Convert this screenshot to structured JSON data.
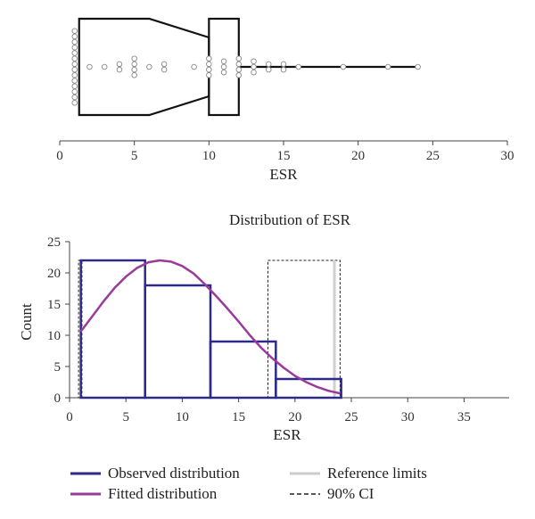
{
  "chart_data": [
    {
      "type": "box",
      "xlabel": "ESR",
      "xlim": [
        0,
        30
      ],
      "xticks": [
        0,
        5,
        10,
        15,
        20,
        25,
        30
      ],
      "box": {
        "q1": 1.3,
        "median": 10,
        "q3": 12,
        "notch_low": 6,
        "notch_high": 10,
        "whisker_high": 24
      },
      "points": [
        {
          "x": 1,
          "n": 14
        },
        {
          "x": 2,
          "n": 1
        },
        {
          "x": 3,
          "n": 1
        },
        {
          "x": 4,
          "n": 2
        },
        {
          "x": 5,
          "n": 4
        },
        {
          "x": 6,
          "n": 1
        },
        {
          "x": 7,
          "n": 2
        },
        {
          "x": 9,
          "n": 1
        },
        {
          "x": 10,
          "n": 4
        },
        {
          "x": 11,
          "n": 3
        },
        {
          "x": 12,
          "n": 4
        },
        {
          "x": 13,
          "n": 3
        },
        {
          "x": 14,
          "n": 2
        },
        {
          "x": 15,
          "n": 2
        },
        {
          "x": 16,
          "n": 1
        },
        {
          "x": 19,
          "n": 1
        },
        {
          "x": 22,
          "n": 1
        },
        {
          "x": 24,
          "n": 1
        }
      ]
    },
    {
      "type": "histogram",
      "title": "Distribution of ESR",
      "xlabel": "ESR",
      "ylabel": "Count",
      "xlim": [
        0,
        39
      ],
      "ylim": [
        0,
        25
      ],
      "xticks": [
        0,
        5,
        10,
        15,
        20,
        25,
        30,
        35
      ],
      "yticks": [
        0,
        5,
        10,
        15,
        20,
        25
      ],
      "bins": [
        {
          "x0": 1,
          "x1": 6.7,
          "count": 22
        },
        {
          "x0": 6.7,
          "x1": 12.5,
          "count": 18
        },
        {
          "x0": 12.5,
          "x1": 18.3,
          "count": 9
        },
        {
          "x0": 18.3,
          "x1": 24.1,
          "count": 3
        }
      ],
      "fitted": {
        "x": [
          1,
          2,
          3,
          4,
          5,
          6,
          7,
          8,
          9,
          10,
          11,
          12,
          13,
          14,
          15,
          16,
          17,
          18,
          19,
          20,
          21,
          22,
          23,
          24
        ],
        "y": [
          10.6,
          13.0,
          15.4,
          17.6,
          19.4,
          20.8,
          21.7,
          22.0,
          21.8,
          21.1,
          19.9,
          18.2,
          16.3,
          14.3,
          12.2,
          10.0,
          8.0,
          6.3,
          4.8,
          3.5,
          2.5,
          1.7,
          1.1,
          0.7
        ]
      },
      "reference_limit": 23.5,
      "ci_boxes": [
        {
          "x0": 0.8,
          "x1": 1.1,
          "y": 22
        },
        {
          "x0": 17.6,
          "x1": 24.0,
          "y": 22
        }
      ],
      "legend": [
        {
          "label": "Observed distribution",
          "color": "#2e2a8a",
          "style": "solid"
        },
        {
          "label": "Reference limits",
          "color": "#cccccc",
          "style": "solid"
        },
        {
          "label": "Fitted distribution",
          "color": "#9a3a9c",
          "style": "solid"
        },
        {
          "label": "90% CI",
          "color": "#222222",
          "style": "dashed"
        }
      ]
    }
  ]
}
